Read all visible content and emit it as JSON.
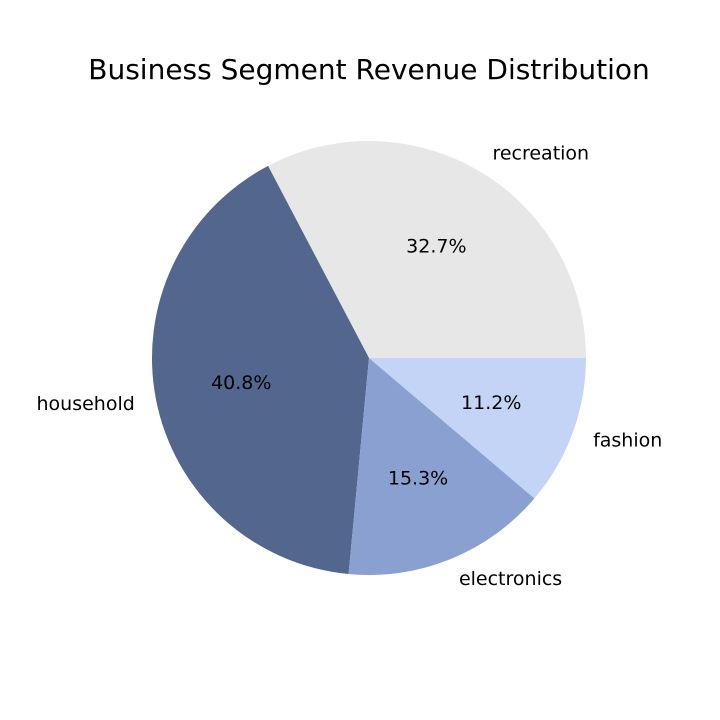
{
  "chart_data": {
    "type": "pie",
    "title": "Business Segment Revenue Distribution",
    "slices": [
      {
        "label": "recreation",
        "value": 32.7,
        "pct_label": "32.7%",
        "color": "#e7e7e7"
      },
      {
        "label": "household",
        "value": 40.8,
        "pct_label": "40.8%",
        "color": "#52668e"
      },
      {
        "label": "electronics",
        "value": 15.3,
        "pct_label": "15.3%",
        "color": "#8aa0d0"
      },
      {
        "label": "fashion",
        "value": 11.2,
        "pct_label": "11.2%",
        "color": "#c4d4f6"
      }
    ],
    "start_angle_deg": 0,
    "direction": "counterclockwise",
    "legend": "none"
  }
}
